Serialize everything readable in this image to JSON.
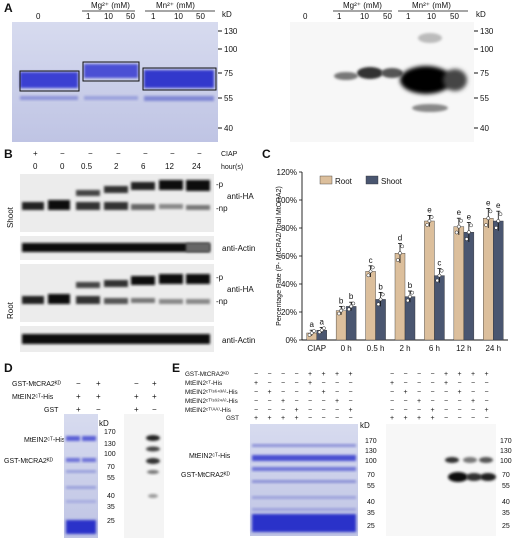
{
  "panel_a": {
    "letter": "A",
    "groups": [
      "Mg²⁺ (mM)",
      "Mn²⁺ (mM)"
    ],
    "lanes": [
      "0",
      "1",
      "10",
      "50",
      "1",
      "10",
      "50"
    ],
    "unit": "kD",
    "markers": [
      "130",
      "100",
      "75",
      "55",
      "40"
    ]
  },
  "panel_b": {
    "letter": "B",
    "ciap_label": "CIAP",
    "ciap_values": [
      "+",
      "−",
      "−",
      "−",
      "−",
      "−",
      "−"
    ],
    "hours_label": "hour(s)",
    "hours": [
      "0",
      "0",
      "0.5",
      "2",
      "6",
      "12",
      "24"
    ],
    "shoot_label": "Shoot",
    "root_label": "Root",
    "p_label": "-p",
    "np_label": "-np",
    "anti_ha": "anti-HA",
    "anti_actin": "anti-Actin"
  },
  "panel_c": {
    "letter": "C"
  },
  "chart_data": {
    "type": "bar",
    "ylabel": "Percentage Rate (P- MtCRA2/Total MtCRA2)",
    "ylim": [
      0,
      120
    ],
    "yticks": [
      "0%",
      "20%",
      "40%",
      "60%",
      "80%",
      "100%",
      "120%"
    ],
    "categories": [
      "CIAP",
      "0 h",
      "0.5 h",
      "2 h",
      "6 h",
      "12 h",
      "24 h"
    ],
    "legend_position": "top-left",
    "series": [
      {
        "name": "Root",
        "color": "#dcbf9c",
        "values": [
          5,
          21,
          49,
          62,
          85,
          81,
          87
        ],
        "errors": [
          2,
          3,
          4,
          7,
          4,
          6,
          7
        ],
        "letters": [
          "a",
          "b",
          "c",
          "d",
          "e",
          "e",
          "e"
        ]
      },
      {
        "name": "Shoot",
        "color": "#4a5670",
        "values": [
          7,
          24,
          29,
          31,
          46,
          77,
          85
        ],
        "errors": [
          2,
          3,
          5,
          4,
          5,
          7,
          7
        ],
        "letters": [
          "a",
          "b",
          "b",
          "b",
          "c",
          "e",
          "e"
        ]
      }
    ]
  },
  "panel_d": {
    "letter": "D",
    "row_labels": [
      "GST-MtCRA2ᴷᴰ",
      "MtEIN2ᶜᵀ-His",
      "GST"
    ],
    "values": [
      [
        "−",
        "+",
        "−",
        "+"
      ],
      [
        "+",
        "+",
        "+",
        "+"
      ],
      [
        "+",
        "−",
        "+",
        "−"
      ]
    ],
    "band_labels": [
      "MtEIN2ᶜᵀ-His",
      "GST-MtCRA2ᴷᴰ"
    ],
    "unit": "kD",
    "markers": [
      "170",
      "130",
      "100",
      "70",
      "55",
      "40",
      "35",
      "25"
    ]
  },
  "panel_e": {
    "letter": "E",
    "row_labels": [
      "GST-MtCRA2ᴷᴰ",
      "MtEIN2ᶜᵀ-His",
      "MtEIN2ᶜᵀ⁽ˢ⁶⁴³ᴬ⁾-His",
      "MtEIN2ᶜᵀ⁽ˢ⁹²⁴ᴬ⁾-His",
      "MtEIN2ᶜᵀ⁽ᴬᴬ⁾-His",
      "GST"
    ],
    "values": [
      [
        "−",
        "−",
        "−",
        "−",
        "+",
        "+",
        "+",
        "+"
      ],
      [
        "+",
        "−",
        "−",
        "−",
        "+",
        "−",
        "−",
        "−"
      ],
      [
        "−",
        "+",
        "−",
        "−",
        "−",
        "+",
        "−",
        "−"
      ],
      [
        "−",
        "−",
        "+",
        "−",
        "−",
        "−",
        "+",
        "−"
      ],
      [
        "−",
        "−",
        "−",
        "+",
        "−",
        "−",
        "−",
        "+"
      ],
      [
        "+",
        "+",
        "+",
        "+",
        "−",
        "−",
        "−",
        "−"
      ]
    ],
    "band_labels": [
      "MtEIN2ᶜᵀ-His",
      "GST-MtCRA2ᴷᴰ"
    ],
    "unit": "kD",
    "markers": [
      "170",
      "130",
      "100",
      "70",
      "55",
      "40",
      "35",
      "25"
    ]
  }
}
